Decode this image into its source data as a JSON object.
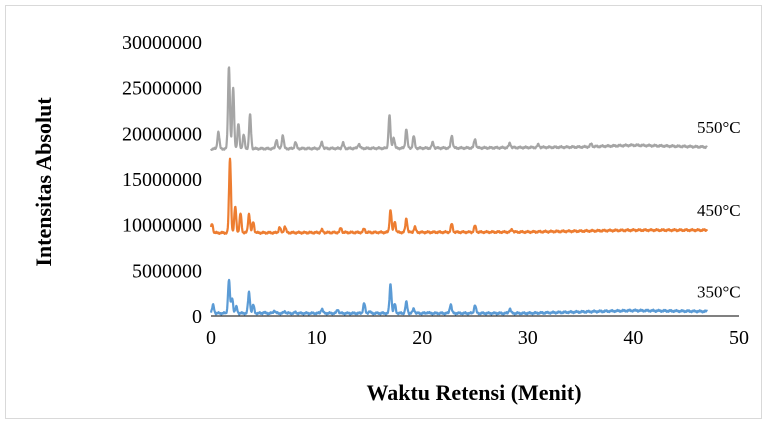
{
  "chart_data": {
    "type": "line",
    "xlabel": "Waktu Retensi (Menit)",
    "ylabel": "Intensitas Absolut",
    "xlim": [
      0,
      50
    ],
    "ylim": [
      0,
      30000000
    ],
    "x_ticks": [
      "0",
      "10",
      "20",
      "30",
      "40",
      "50"
    ],
    "y_ticks": [
      "0",
      "5000000",
      "10000000",
      "15000000",
      "20000000",
      "25000000",
      "30000000"
    ],
    "grid": false,
    "legend": "none",
    "series": [
      {
        "name": "350°C",
        "color": "#5b9bd5",
        "baseline": 300000,
        "x_end": 47,
        "peaks": [
          [
            0.2,
            1200000
          ],
          [
            1.7,
            3900000
          ],
          [
            2.0,
            2000000
          ],
          [
            2.4,
            1000000
          ],
          [
            3.6,
            2600000
          ],
          [
            4.0,
            1200000
          ],
          [
            5.0,
            400000
          ],
          [
            6.0,
            600000
          ],
          [
            7.0,
            500000
          ],
          [
            8.0,
            400000
          ],
          [
            10.5,
            800000
          ],
          [
            12.0,
            700000
          ],
          [
            14.5,
            1400000
          ],
          [
            15.0,
            500000
          ],
          [
            17.0,
            3500000
          ],
          [
            17.4,
            1300000
          ],
          [
            18.5,
            1500000
          ],
          [
            19.2,
            800000
          ],
          [
            20.5,
            400000
          ],
          [
            22.7,
            1300000
          ],
          [
            25.0,
            1200000
          ],
          [
            28.3,
            800000
          ],
          [
            30.5,
            300000
          ]
        ],
        "drift": [
          [
            0,
            300000
          ],
          [
            30,
            300000
          ],
          [
            40,
            600000
          ],
          [
            47,
            500000
          ]
        ]
      },
      {
        "name": "450°C",
        "color": "#ed7d31",
        "baseline": 9100000,
        "x_end": 47,
        "peaks": [
          [
            0.1,
            10100000
          ],
          [
            1.8,
            17300000
          ],
          [
            2.3,
            12000000
          ],
          [
            2.8,
            11200000
          ],
          [
            3.6,
            11200000
          ],
          [
            4.0,
            10300000
          ],
          [
            6.5,
            9700000
          ],
          [
            7.0,
            9800000
          ],
          [
            10.5,
            9400000
          ],
          [
            12.3,
            9600000
          ],
          [
            14.5,
            9500000
          ],
          [
            17.0,
            11600000
          ],
          [
            17.4,
            10300000
          ],
          [
            18.5,
            10600000
          ],
          [
            19.3,
            9700000
          ],
          [
            22.8,
            10000000
          ],
          [
            25.0,
            9800000
          ],
          [
            28.5,
            9400000
          ]
        ],
        "drift": [
          [
            0,
            9100000
          ],
          [
            30,
            9200000
          ],
          [
            40,
            9400000
          ],
          [
            47,
            9400000
          ]
        ]
      },
      {
        "name": "550°C",
        "color": "#a5a5a5",
        "baseline": 18300000,
        "x_end": 47,
        "peaks": [
          [
            0.7,
            20200000
          ],
          [
            1.7,
            27300000
          ],
          [
            2.1,
            25000000
          ],
          [
            2.6,
            21000000
          ],
          [
            3.1,
            19800000
          ],
          [
            3.7,
            22000000
          ],
          [
            6.2,
            19300000
          ],
          [
            6.8,
            19800000
          ],
          [
            8.0,
            19000000
          ],
          [
            10.5,
            19000000
          ],
          [
            12.5,
            18900000
          ],
          [
            14.0,
            18800000
          ],
          [
            16.9,
            21900000
          ],
          [
            17.3,
            19500000
          ],
          [
            18.5,
            20400000
          ],
          [
            19.2,
            19600000
          ],
          [
            21.0,
            18900000
          ],
          [
            22.8,
            19700000
          ],
          [
            25.0,
            19300000
          ],
          [
            28.3,
            18800000
          ],
          [
            31.0,
            18600000
          ],
          [
            36.0,
            18600000
          ]
        ],
        "drift": [
          [
            0,
            18300000
          ],
          [
            25,
            18400000
          ],
          [
            35,
            18500000
          ],
          [
            40,
            18700000
          ],
          [
            47,
            18500000
          ]
        ]
      }
    ]
  }
}
